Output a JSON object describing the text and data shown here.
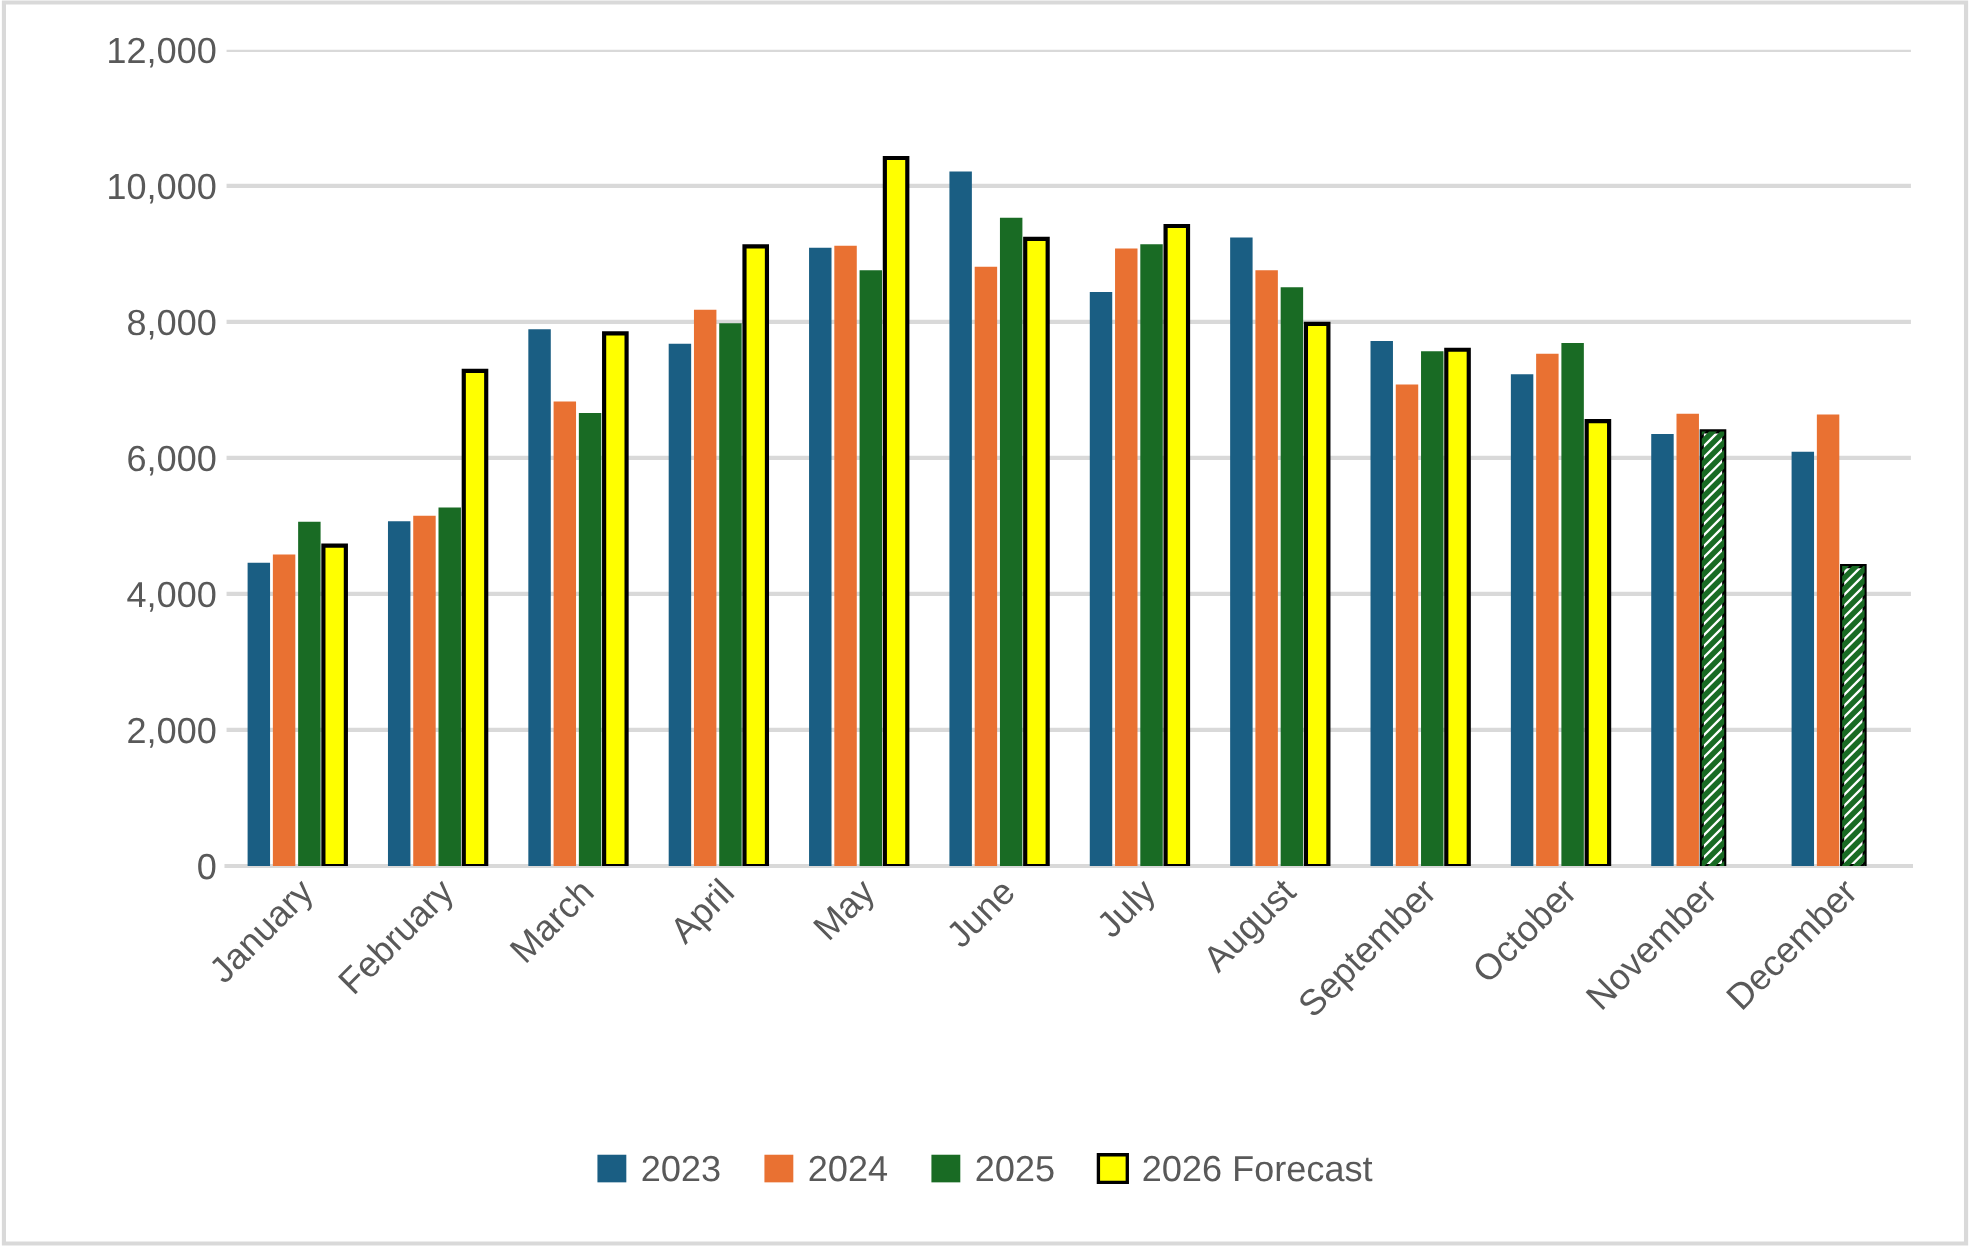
{
  "chart_data": {
    "type": "bar",
    "categories": [
      "January",
      "February",
      "March",
      "April",
      "May",
      "June",
      "July",
      "August",
      "September",
      "October",
      "November",
      "December"
    ],
    "series": [
      {
        "name": "2023",
        "color": "#1a5e83",
        "values": [
          4460,
          5070,
          7890,
          7680,
          9090,
          10210,
          8440,
          9240,
          7720,
          7230,
          6350,
          6090
        ]
      },
      {
        "name": "2024",
        "color": "#e97132",
        "values": [
          4580,
          5150,
          6830,
          8180,
          9120,
          8810,
          9080,
          8760,
          7080,
          7530,
          6650,
          6640
        ]
      },
      {
        "name": "2025",
        "color": "#196b24",
        "values": [
          5060,
          5270,
          6660,
          7980,
          8760,
          9530,
          9140,
          8510,
          7570,
          7690,
          null,
          null
        ]
      },
      {
        "name": "2026 Forecast",
        "color": "#ffff00",
        "values": [
          4710,
          7280,
          7830,
          9110,
          10410,
          9220,
          9410,
          7970,
          7590,
          6540,
          null,
          null
        ]
      },
      {
        "color": "#196b24",
        "values": [
          null,
          null,
          null,
          null,
          null,
          null,
          null,
          null,
          null,
          null,
          6390,
          4410
        ]
      }
    ],
    "ylim": [
      0,
      12000
    ],
    "yticks": [
      {
        "value": 0,
        "label": "0"
      },
      {
        "value": 2000,
        "label": "2,000"
      },
      {
        "value": 4000,
        "label": "4,000"
      },
      {
        "value": 6000,
        "label": "6,000"
      },
      {
        "value": 8000,
        "label": "8,000"
      },
      {
        "value": 10000,
        "label": "10,000"
      },
      {
        "value": 12000,
        "label": "12,000"
      }
    ],
    "grid": "y",
    "legend": "bottom"
  }
}
